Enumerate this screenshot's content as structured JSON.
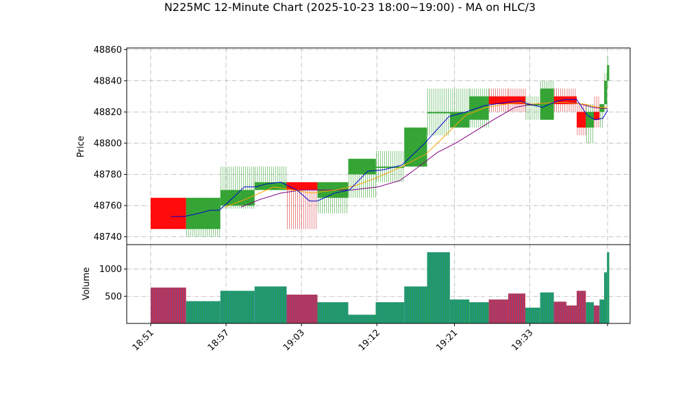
{
  "chart_data": {
    "type": "candlestick",
    "title": "N225MC 12-Minute Chart (2025-10-23 18:00~19:00) - MA on HLC/3",
    "ylabel_price": "Price",
    "ylabel_volume": "Volume",
    "price_ylim": [
      48735,
      48861
    ],
    "price_yticks": [
      48740,
      48760,
      48780,
      48800,
      48820,
      48840,
      48860
    ],
    "volume_ylim": [
      0,
      1450
    ],
    "volume_yticks": [
      500,
      1000
    ],
    "x_range": [
      0,
      47.5
    ],
    "x_tick_labels": [
      {
        "pos": 0,
        "label": "18:51"
      },
      {
        "pos": 6.6,
        "label": "18:57"
      },
      {
        "pos": 13.2,
        "label": "19:03"
      },
      {
        "pos": 19.8,
        "label": "19:12"
      },
      {
        "pos": 26.6,
        "label": "19:21"
      },
      {
        "pos": 33.2,
        "label": "19:33"
      },
      {
        "pos": 40.0,
        "label": ""
      }
    ],
    "up_color": "#2ca02c",
    "down_color": "#ff0000",
    "wick_up_color": "#2ca02c",
    "wick_down_color": "#d62728",
    "vol_up_color": "#1f9e5e",
    "vol_down_color": "#c03050",
    "ma_fast_color": "#0000cc",
    "ma_mid_color": "#ffa500",
    "ma_slow_color": "#800080",
    "grid": true,
    "candles": [
      {
        "x0": 0,
        "x1": 3.1,
        "open": 48765,
        "high": 48765,
        "low": 48745,
        "close": 48745,
        "volume": 660
      },
      {
        "x0": 3.1,
        "x1": 6.1,
        "open": 48745,
        "high": 48765,
        "low": 48740,
        "close": 48765,
        "volume": 410
      },
      {
        "x0": 6.1,
        "x1": 9.1,
        "open": 48760,
        "high": 48785,
        "low": 48758,
        "close": 48770,
        "volume": 600
      },
      {
        "x0": 9.1,
        "x1": 11.9,
        "open": 48770,
        "high": 48785,
        "low": 48770,
        "close": 48775,
        "volume": 680
      },
      {
        "x0": 11.9,
        "x1": 14.6,
        "open": 48775,
        "high": 48775,
        "low": 48745,
        "close": 48770,
        "volume": 530
      },
      {
        "x0": 14.6,
        "x1": 17.3,
        "open": 48765,
        "high": 48775,
        "low": 48755,
        "close": 48775,
        "volume": 390
      },
      {
        "x0": 17.3,
        "x1": 19.7,
        "open": 48780,
        "high": 48790,
        "low": 48765,
        "close": 48790,
        "volume": 160
      },
      {
        "x0": 19.7,
        "x1": 22.2,
        "open": 48785,
        "high": 48795,
        "low": 48775,
        "close": 48785,
        "volume": 390
      },
      {
        "x0": 22.2,
        "x1": 24.2,
        "open": 48785,
        "high": 48810,
        "low": 48785,
        "close": 48810,
        "volume": 680
      },
      {
        "x0": 24.2,
        "x1": 26.2,
        "open": 48820,
        "high": 48835,
        "low": 48805,
        "close": 48820,
        "volume": 1310
      },
      {
        "x0": 26.2,
        "x1": 27.9,
        "open": 48810,
        "high": 48835,
        "low": 48810,
        "close": 48820,
        "volume": 440
      },
      {
        "x0": 27.9,
        "x1": 29.6,
        "open": 48815,
        "high": 48835,
        "low": 48810,
        "close": 48830,
        "volume": 390
      },
      {
        "x0": 29.6,
        "x1": 31.3,
        "open": 48830,
        "high": 48835,
        "low": 48820,
        "close": 48825,
        "volume": 440
      },
      {
        "x0": 31.3,
        "x1": 32.8,
        "open": 48830,
        "high": 48835,
        "low": 48820,
        "close": 48825,
        "volume": 550
      },
      {
        "x0": 32.8,
        "x1": 34.1,
        "open": 48825,
        "high": 48830,
        "low": 48815,
        "close": 48825,
        "volume": 290
      },
      {
        "x0": 34.1,
        "x1": 35.3,
        "open": 48815,
        "high": 48840,
        "low": 48815,
        "close": 48835,
        "volume": 570
      },
      {
        "x0": 35.3,
        "x1": 36.4,
        "open": 48830,
        "high": 48835,
        "low": 48820,
        "close": 48825,
        "volume": 400
      },
      {
        "x0": 36.4,
        "x1": 37.3,
        "open": 48830,
        "high": 48835,
        "low": 48820,
        "close": 48825,
        "volume": 330
      },
      {
        "x0": 37.3,
        "x1": 38.1,
        "open": 48820,
        "high": 48825,
        "low": 48805,
        "close": 48810,
        "volume": 600
      },
      {
        "x0": 38.1,
        "x1": 38.8,
        "open": 48810,
        "high": 48825,
        "low": 48800,
        "close": 48820,
        "volume": 390
      },
      {
        "x0": 38.8,
        "x1": 39.3,
        "open": 48820,
        "high": 48830,
        "low": 48810,
        "close": 48815,
        "volume": 330
      },
      {
        "x0": 39.3,
        "x1": 39.7,
        "open": 48820,
        "high": 48825,
        "low": 48810,
        "close": 48825,
        "volume": 440
      },
      {
        "x0": 39.7,
        "x1": 39.95,
        "open": 48825,
        "high": 48845,
        "low": 48820,
        "close": 48840,
        "volume": 940
      },
      {
        "x0": 39.95,
        "x1": 40.15,
        "open": 48840,
        "high": 48856,
        "low": 48835,
        "close": 48850,
        "volume": 1310
      }
    ],
    "ma_fast": [
      [
        1.8,
        48753
      ],
      [
        2.9,
        48753
      ],
      [
        4.2,
        48755
      ],
      [
        5.2,
        48757
      ],
      [
        6.0,
        48757
      ],
      [
        7.2,
        48765
      ],
      [
        8.2,
        48772
      ],
      [
        9.2,
        48772
      ],
      [
        10.2,
        48774
      ],
      [
        11.4,
        48775
      ],
      [
        12.8,
        48770
      ],
      [
        13.9,
        48763
      ],
      [
        14.6,
        48763
      ],
      [
        16.1,
        48768
      ],
      [
        17.4,
        48770
      ],
      [
        19.0,
        48782
      ],
      [
        20.4,
        48783
      ],
      [
        22.0,
        48786
      ],
      [
        24.0,
        48800
      ],
      [
        26.1,
        48817
      ],
      [
        27.6,
        48820
      ],
      [
        29.2,
        48824
      ],
      [
        31.0,
        48826
      ],
      [
        32.4,
        48827
      ],
      [
        33.1,
        48825
      ],
      [
        34.3,
        48823
      ],
      [
        35.6,
        48827
      ],
      [
        36.3,
        48828
      ],
      [
        37.3,
        48828
      ],
      [
        38.2,
        48818
      ],
      [
        38.9,
        48815
      ],
      [
        39.6,
        48816
      ],
      [
        40.0,
        48821
      ]
    ],
    "ma_mid": [
      [
        6.5,
        48759
      ],
      [
        8.3,
        48764
      ],
      [
        10.8,
        48772
      ],
      [
        12.4,
        48770
      ],
      [
        14.1,
        48768
      ],
      [
        16.2,
        48770
      ],
      [
        18.0,
        48773
      ],
      [
        19.5,
        48777
      ],
      [
        22.0,
        48785
      ],
      [
        24.1,
        48793
      ],
      [
        25.8,
        48805
      ],
      [
        27.6,
        48818
      ],
      [
        29.4,
        48823
      ],
      [
        31.1,
        48825
      ],
      [
        32.4,
        48826
      ],
      [
        33.4,
        48825
      ],
      [
        35.1,
        48826
      ],
      [
        36.4,
        48826
      ],
      [
        38.0,
        48825
      ],
      [
        39.2,
        48823
      ],
      [
        40.0,
        48823
      ]
    ],
    "ma_slow": [
      [
        7.9,
        48759
      ],
      [
        9.6,
        48764
      ],
      [
        11.4,
        48768
      ],
      [
        13.3,
        48770
      ],
      [
        15.6,
        48770
      ],
      [
        17.6,
        48770
      ],
      [
        19.9,
        48772
      ],
      [
        21.8,
        48776
      ],
      [
        23.3,
        48784
      ],
      [
        25.1,
        48794
      ],
      [
        26.7,
        48800
      ],
      [
        28.7,
        48809
      ],
      [
        30.0,
        48815
      ],
      [
        31.9,
        48823
      ],
      [
        33.5,
        48825
      ],
      [
        35.1,
        48826
      ],
      [
        37.2,
        48826
      ],
      [
        38.7,
        48823
      ],
      [
        40.0,
        48822
      ]
    ]
  }
}
